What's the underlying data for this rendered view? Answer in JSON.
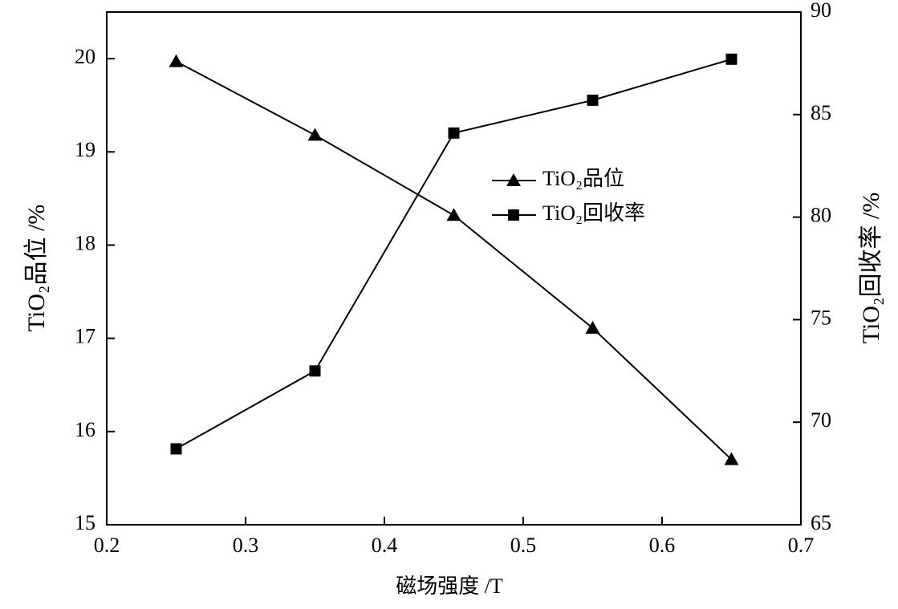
{
  "chart_data": {
    "type": "line",
    "x_label": "磁场强度 /T",
    "y_label": "TiO₂品位 /%",
    "y2_label": "TiO₂回收率 /%",
    "x": [
      0.25,
      0.35,
      0.45,
      0.55,
      0.65
    ],
    "series": [
      {
        "name": "TiO₂品位",
        "color": "#000000",
        "marker": "triangle",
        "values": [
          19.97,
          19.18,
          18.32,
          17.11,
          15.7
        ]
      },
      {
        "name": "TiO₂回收率",
        "color": "#000000",
        "marker": "square",
        "axis": "y2",
        "values": [
          68.7,
          72.5,
          84.1,
          85.7,
          87.7
        ]
      }
    ],
    "xlim": [
      0.2,
      0.7
    ],
    "xticks": [
      0.2,
      0.3,
      0.4,
      0.5,
      0.6,
      0.7
    ],
    "ylim": [
      15,
      20.5
    ],
    "yticks": [
      15,
      16,
      17,
      18,
      19,
      20
    ],
    "y2lim": [
      65,
      90
    ],
    "y2ticks": [
      65,
      70,
      75,
      80,
      85,
      90
    ],
    "legend": "center-right"
  }
}
